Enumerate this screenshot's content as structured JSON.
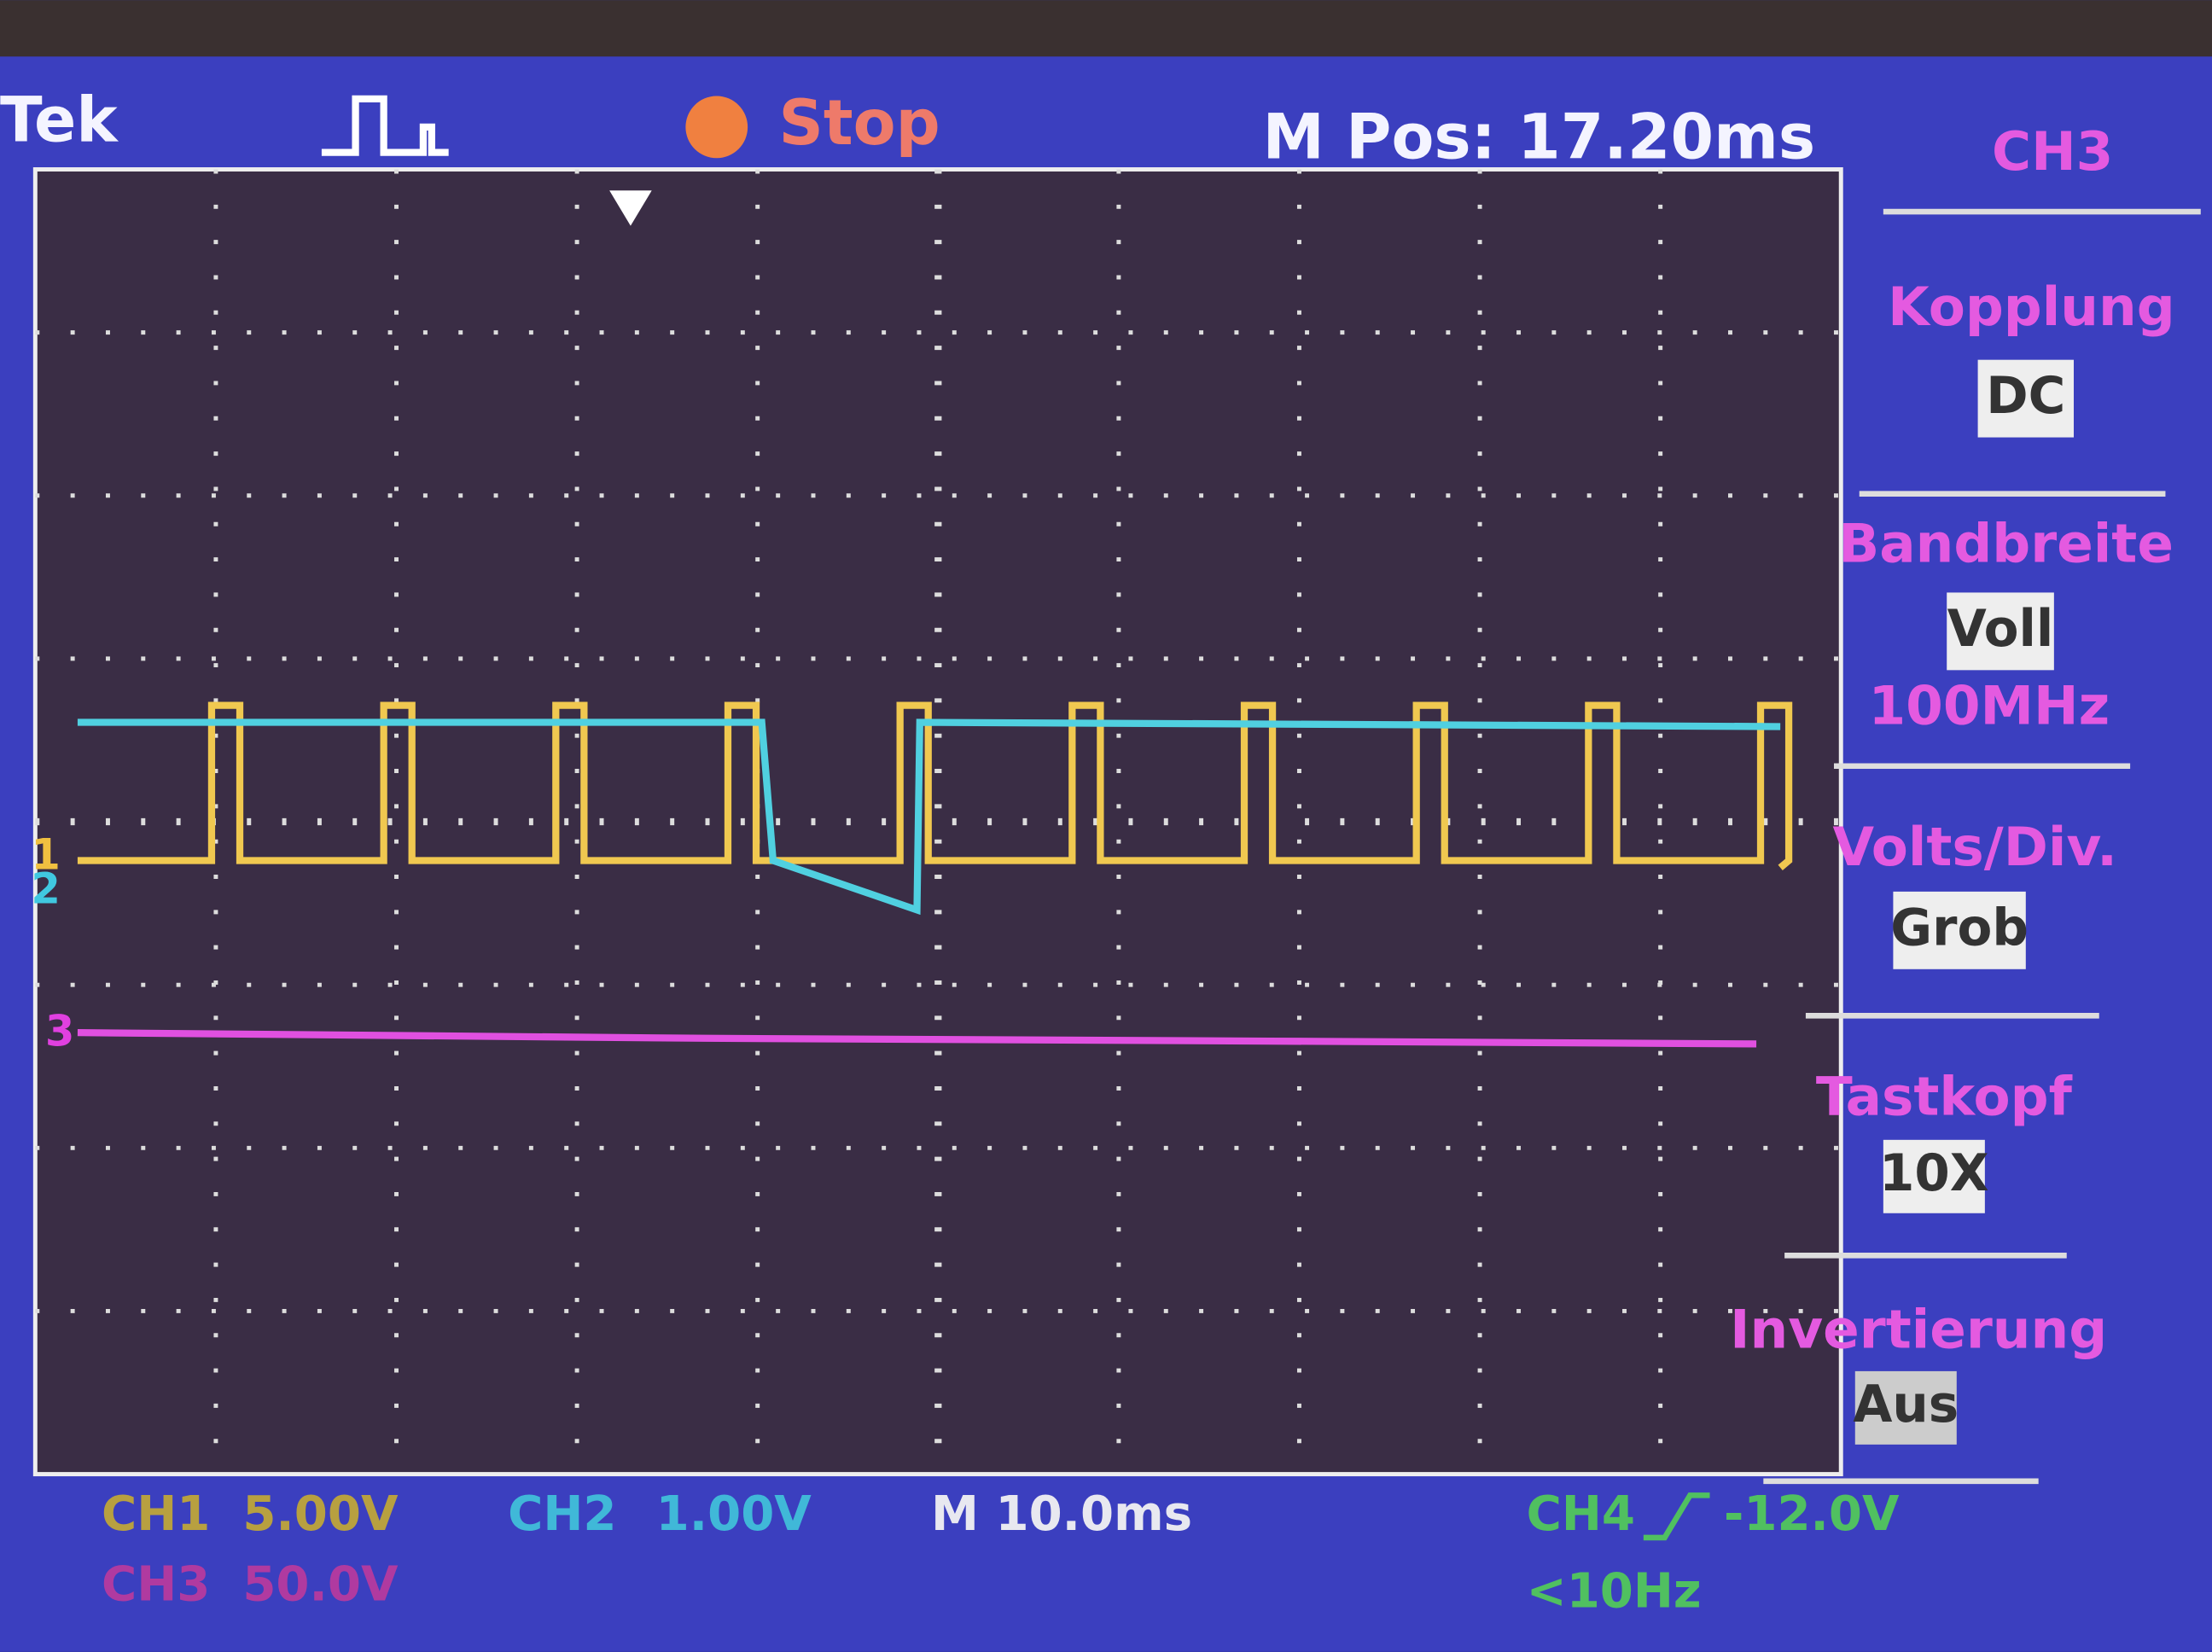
{
  "header": {
    "brand": "Tek",
    "status": "Stop",
    "position": "M Pos: 17.20ms",
    "menu_title": "CH3"
  },
  "markers": [
    "1",
    "2",
    "3"
  ],
  "menu": [
    {
      "label": "Kopplung",
      "value": "DC"
    },
    {
      "label": "Bandbreite",
      "value": "Voll",
      "extra": "100MHz"
    },
    {
      "label": "Volts/Div.",
      "value": "Grob"
    },
    {
      "label": "Tastkopf",
      "value": "10X"
    },
    {
      "label": "Invertierung",
      "value": "Aus"
    }
  ],
  "footer": {
    "ch1": {
      "name": "CH1",
      "scale": "5.00V"
    },
    "ch2": {
      "name": "CH2",
      "scale": "1.00V"
    },
    "time": "M 10.0ms",
    "trigger": {
      "name": "CH4",
      "level": "-12.0V",
      "frequency": "<10Hz"
    },
    "ch3": {
      "name": "CH3",
      "scale": "50.0V"
    }
  }
}
